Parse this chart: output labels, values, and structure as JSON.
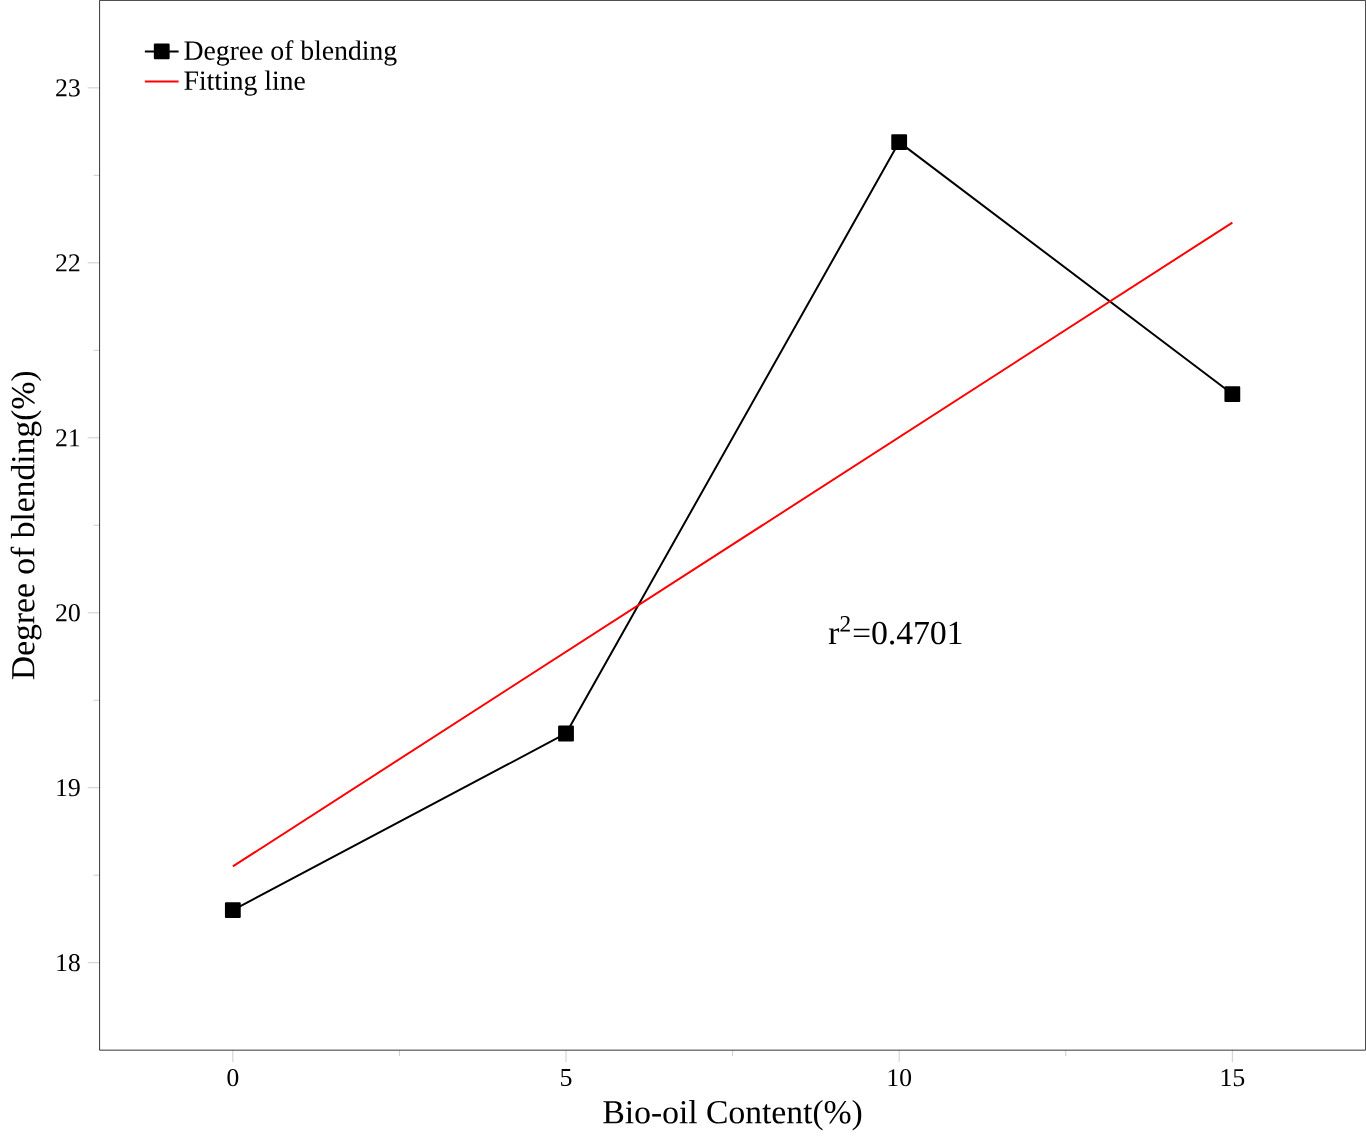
{
  "chart_data": {
    "type": "line",
    "xlabel": "Bio-oil Content(%)",
    "ylabel": "Degree of blending(%)",
    "x": [
      0,
      5,
      10,
      15
    ],
    "series": [
      {
        "name": "Degree of blending",
        "color": "#000000",
        "values": [
          18.3,
          19.31,
          22.69,
          21.25
        ],
        "marker": "square"
      },
      {
        "name": "Fitting line",
        "color": "#ff0000",
        "x": [
          0,
          15
        ],
        "values": [
          18.55,
          22.23
        ],
        "marker": "none"
      }
    ],
    "annotations": [
      "r$^{2}$=0.4701"
    ],
    "xlim": [
      -2,
      17
    ],
    "ylim": [
      17.5,
      23.5
    ],
    "xticks": [
      0,
      5,
      10,
      15
    ],
    "yticks": [
      18,
      19,
      20,
      21,
      22,
      23
    ],
    "legend": "top left",
    "grid": false,
    "line_style": "solid"
  }
}
